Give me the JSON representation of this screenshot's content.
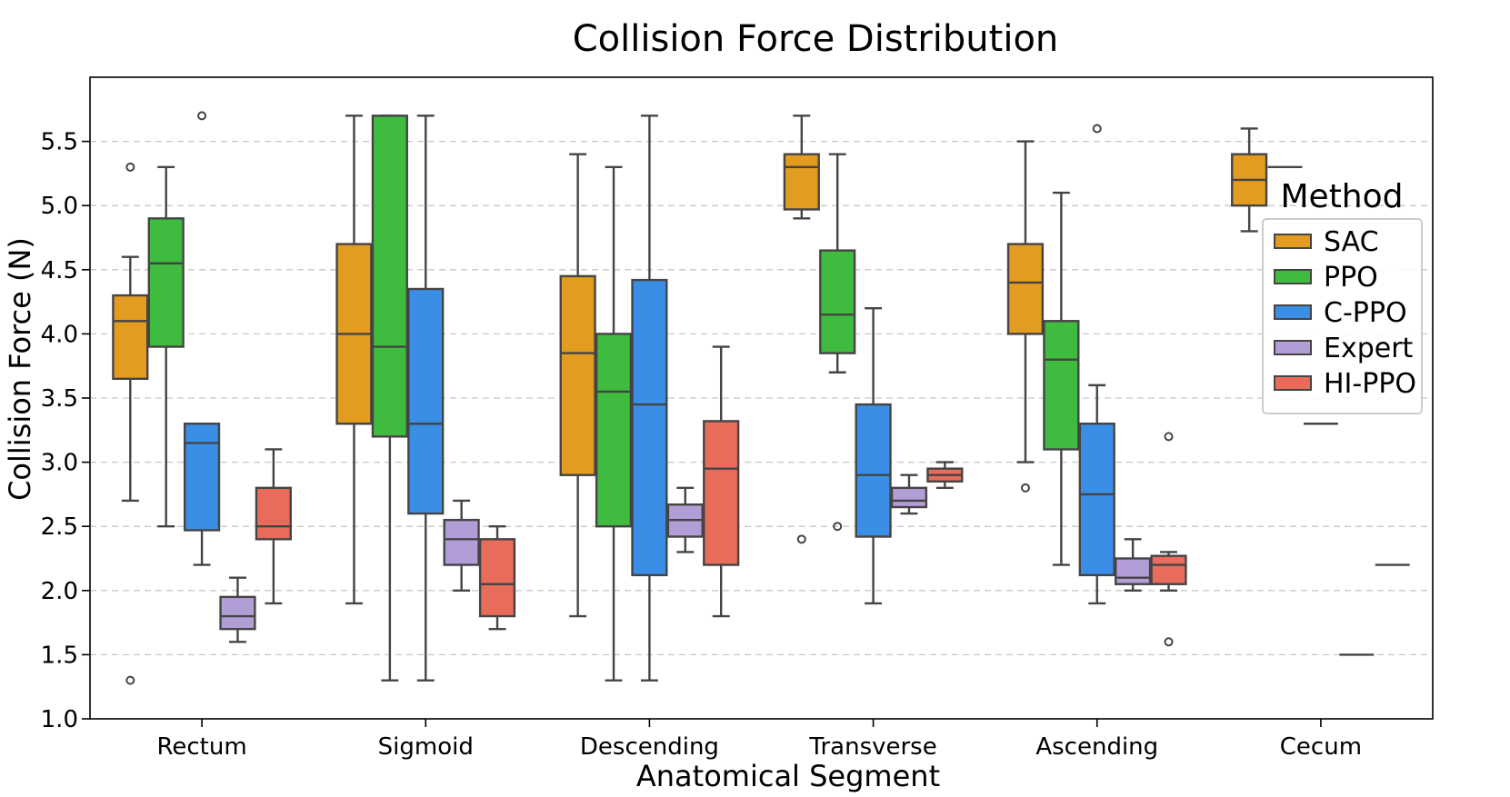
{
  "chart_data": {
    "type": "box",
    "title": "Collision Force Distribution",
    "xlabel": "Anatomical Segment",
    "ylabel": "Collision Force (N)",
    "ylim": [
      1.0,
      6.0
    ],
    "yticks": [
      "1.0",
      "1.5",
      "2.0",
      "2.5",
      "3.0",
      "3.5",
      "4.0",
      "4.5",
      "5.0",
      "5.5"
    ],
    "categories": [
      "Rectum",
      "Sigmoid",
      "Descending",
      "Transverse",
      "Ascending",
      "Cecum"
    ],
    "grid": true,
    "legend": {
      "title": "Method",
      "position": "upper-right"
    },
    "series": [
      {
        "name": "SAC",
        "color": "#e29c1f",
        "boxes": [
          {
            "whislo": 2.7,
            "q1": 3.65,
            "med": 4.1,
            "q3": 4.3,
            "whishi": 4.6,
            "fliers": [
              5.3,
              1.3
            ]
          },
          {
            "whislo": 1.9,
            "q1": 3.3,
            "med": 4.0,
            "q3": 4.7,
            "whishi": 5.7,
            "fliers": []
          },
          {
            "whislo": 1.8,
            "q1": 2.9,
            "med": 3.85,
            "q3": 4.45,
            "whishi": 5.4,
            "fliers": []
          },
          {
            "whislo": 4.9,
            "q1": 4.97,
            "med": 5.3,
            "q3": 5.4,
            "whishi": 5.7,
            "fliers": [
              2.4
            ]
          },
          {
            "whislo": 3.0,
            "q1": 4.0,
            "med": 4.4,
            "q3": 4.7,
            "whishi": 5.5,
            "fliers": [
              2.8
            ]
          },
          {
            "whislo": 4.8,
            "q1": 5.0,
            "med": 5.2,
            "q3": 5.4,
            "whishi": 5.6,
            "fliers": []
          }
        ]
      },
      {
        "name": "PPO",
        "color": "#3fbb3f",
        "boxes": [
          {
            "whislo": 2.5,
            "q1": 3.9,
            "med": 4.55,
            "q3": 4.9,
            "whishi": 5.3,
            "fliers": []
          },
          {
            "whislo": 1.3,
            "q1": 3.2,
            "med": 3.9,
            "q3": 5.7,
            "whishi": 5.7,
            "fliers": []
          },
          {
            "whislo": 1.3,
            "q1": 2.5,
            "med": 3.55,
            "q3": 4.0,
            "whishi": 5.3,
            "fliers": []
          },
          {
            "whislo": 3.7,
            "q1": 3.85,
            "med": 4.15,
            "q3": 4.65,
            "whishi": 5.4,
            "fliers": [
              2.5
            ]
          },
          {
            "whislo": 2.2,
            "q1": 3.1,
            "med": 3.8,
            "q3": 4.1,
            "whishi": 5.1,
            "fliers": []
          },
          {
            "single": 5.3
          }
        ]
      },
      {
        "name": "C-PPO",
        "color": "#3b8ee5",
        "boxes": [
          {
            "whislo": 2.2,
            "q1": 2.47,
            "med": 3.15,
            "q3": 3.3,
            "whishi": 3.3,
            "fliers": [
              5.7
            ]
          },
          {
            "whislo": 1.3,
            "q1": 2.6,
            "med": 3.3,
            "q3": 4.35,
            "whishi": 5.7,
            "fliers": []
          },
          {
            "whislo": 1.3,
            "q1": 2.12,
            "med": 3.45,
            "q3": 4.42,
            "whishi": 5.7,
            "fliers": []
          },
          {
            "whislo": 1.9,
            "q1": 2.42,
            "med": 2.9,
            "q3": 3.45,
            "whishi": 4.2,
            "fliers": []
          },
          {
            "whislo": 1.9,
            "q1": 2.12,
            "med": 2.75,
            "q3": 3.3,
            "whishi": 3.6,
            "fliers": [
              5.6
            ]
          },
          {
            "single": 3.3
          }
        ]
      },
      {
        "name": "Expert",
        "color": "#b39dd7",
        "boxes": [
          {
            "whislo": 1.6,
            "q1": 1.7,
            "med": 1.8,
            "q3": 1.95,
            "whishi": 2.1,
            "fliers": []
          },
          {
            "whislo": 2.0,
            "q1": 2.2,
            "med": 2.4,
            "q3": 2.55,
            "whishi": 2.7,
            "fliers": []
          },
          {
            "whislo": 2.3,
            "q1": 2.42,
            "med": 2.55,
            "q3": 2.67,
            "whishi": 2.8,
            "fliers": []
          },
          {
            "whislo": 2.6,
            "q1": 2.65,
            "med": 2.7,
            "q3": 2.8,
            "whishi": 2.9,
            "fliers": []
          },
          {
            "whislo": 2.0,
            "q1": 2.05,
            "med": 2.1,
            "q3": 2.25,
            "whishi": 2.4,
            "fliers": []
          },
          {
            "single": 1.5
          }
        ]
      },
      {
        "name": "HI-PPO",
        "color": "#e96c5b",
        "boxes": [
          {
            "whislo": 1.9,
            "q1": 2.4,
            "med": 2.5,
            "q3": 2.8,
            "whishi": 3.1,
            "fliers": []
          },
          {
            "whislo": 1.7,
            "q1": 1.8,
            "med": 2.05,
            "q3": 2.4,
            "whishi": 2.5,
            "fliers": []
          },
          {
            "whislo": 1.8,
            "q1": 2.2,
            "med": 2.95,
            "q3": 3.32,
            "whishi": 3.9,
            "fliers": []
          },
          {
            "whislo": 2.8,
            "q1": 2.85,
            "med": 2.9,
            "q3": 2.95,
            "whishi": 3.0,
            "fliers": []
          },
          {
            "whislo": 2.0,
            "q1": 2.05,
            "med": 2.2,
            "q3": 2.27,
            "whishi": 2.3,
            "fliers": [
              3.2,
              1.6
            ]
          },
          {
            "single": 2.2
          }
        ]
      }
    ]
  }
}
